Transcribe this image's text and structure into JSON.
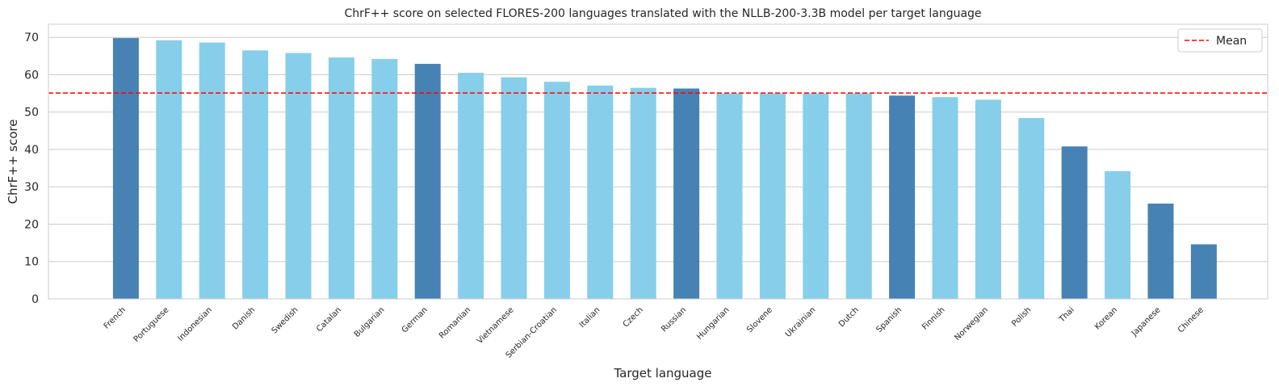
{
  "chart_data": {
    "type": "bar",
    "title": "ChrF++ score on selected FLORES-200 languages translated with the NLLB-200-3.3B model per target language",
    "xlabel": "Target language",
    "ylabel": "ChrF++ score",
    "ylim": [
      0,
      73.5
    ],
    "yticks": [
      0,
      10,
      20,
      30,
      40,
      50,
      60,
      70
    ],
    "grid": "horizontal",
    "legend_position": "top-right",
    "categories": [
      "French",
      "Portuguese",
      "Indonesian",
      "Danish",
      "Swedish",
      "Catalan",
      "Bulgarian",
      "German",
      "Romanian",
      "Vietnamese",
      "Serbian-Croatian",
      "Italian",
      "Czech",
      "Russian",
      "Hungarian",
      "Slovene",
      "Ukrainian",
      "Dutch",
      "Spanish",
      "Finnish",
      "Norwegian",
      "Polish",
      "Thai",
      "Korean",
      "Japanese",
      "Chinese"
    ],
    "values": [
      69.8,
      69.2,
      68.6,
      66.5,
      65.8,
      64.6,
      64.2,
      62.9,
      60.5,
      59.3,
      58.1,
      57.1,
      56.5,
      56.3,
      55.0,
      55.0,
      55.0,
      55.0,
      54.4,
      54.0,
      53.3,
      48.4,
      40.8,
      34.2,
      25.5,
      14.6
    ],
    "highlighted": [
      true,
      false,
      false,
      false,
      false,
      false,
      false,
      true,
      false,
      false,
      false,
      false,
      false,
      true,
      false,
      false,
      false,
      false,
      true,
      false,
      false,
      false,
      true,
      false,
      true,
      true
    ],
    "mean": 55.1,
    "legend": [
      {
        "label": "Mean",
        "style": "dashed",
        "color": "#ff0000"
      }
    ],
    "colors": {
      "highlight": "#4682b4",
      "normal": "#87ceeb",
      "mean_line": "#ff0000",
      "grid": "#cccccc",
      "axes": "#cccccc"
    }
  }
}
